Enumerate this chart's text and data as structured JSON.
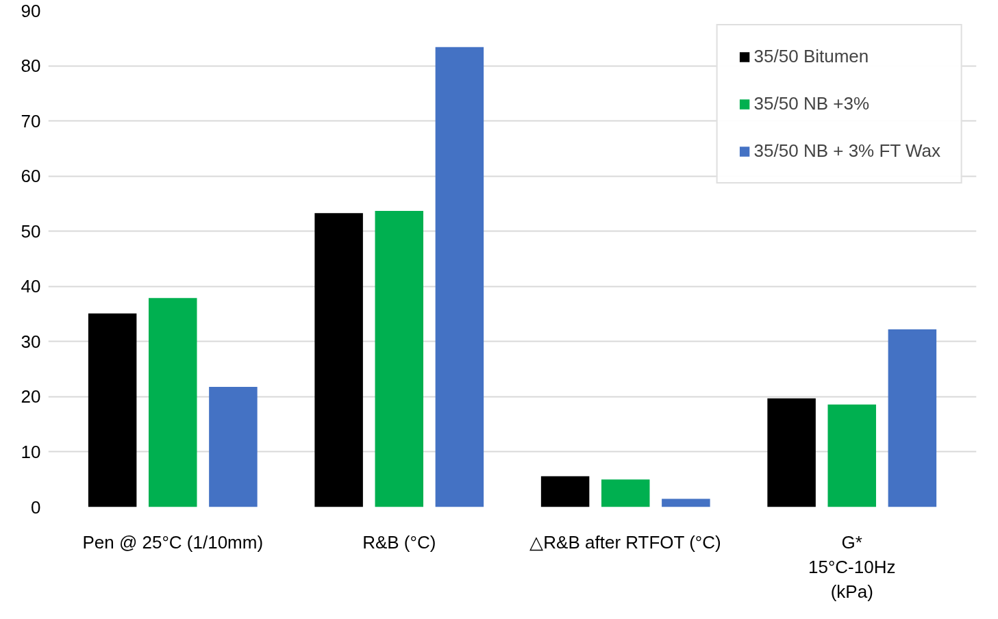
{
  "chart_data": {
    "type": "bar",
    "categories": [
      "Pen @ 25°C (1/10mm)",
      "R&B (°C)",
      "△R&B after RTFOT (°C)",
      "G*\n15°C-10Hz\n(kPa)"
    ],
    "series": [
      {
        "name": "35/50 Bitumen",
        "color": "#000000",
        "values": [
          35.1,
          53.3,
          5.6,
          19.7
        ]
      },
      {
        "name": "35/50 NB +3%",
        "color": "#00b050",
        "values": [
          37.9,
          53.7,
          5.0,
          18.6
        ]
      },
      {
        "name": "35/50 NB + 3% FT Wax",
        "color": "#4472c4",
        "values": [
          21.8,
          83.4,
          1.5,
          32.2
        ]
      }
    ],
    "ylim": [
      0,
      90
    ],
    "yticks": [
      0,
      10,
      20,
      30,
      40,
      50,
      60,
      70,
      80,
      90
    ],
    "grid": "y",
    "legend": "top right"
  }
}
